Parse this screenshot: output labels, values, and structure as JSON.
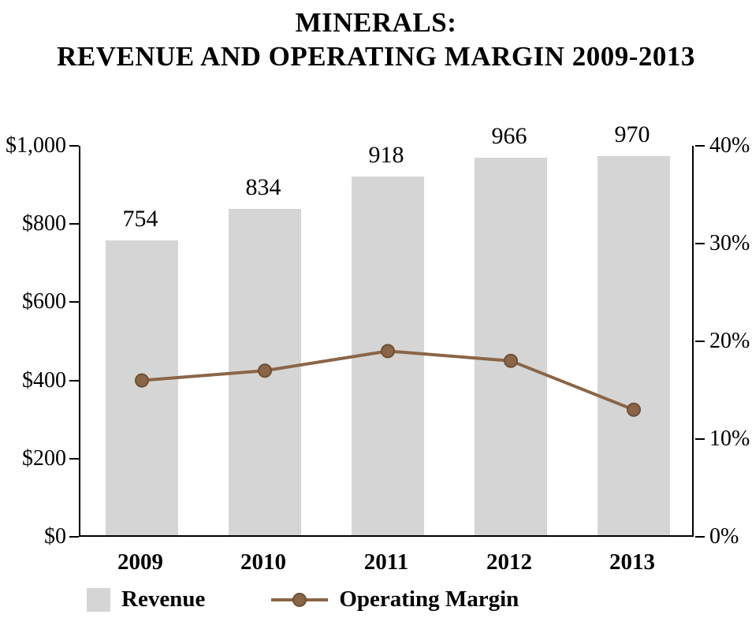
{
  "title": {
    "line1": "MINERALS:",
    "line2": "REVENUE AND OPERATING MARGIN 2009-2013"
  },
  "legend": {
    "revenue": "Revenue",
    "margin": "Operating Margin"
  },
  "colors": {
    "bar": "#d5d5d5",
    "line": "#8a6547",
    "marker_stroke": "#6e4f35",
    "pct_label": "#9a6f45",
    "axis": "#000000",
    "text": "#000000"
  },
  "chart_data": {
    "type": "bar+line",
    "title": "MINERALS: REVENUE AND OPERATING MARGIN 2009-2013",
    "categories": [
      "2009",
      "2010",
      "2011",
      "2012",
      "2013"
    ],
    "series": [
      {
        "name": "Revenue",
        "type": "bar",
        "axis": "left",
        "values": [
          754,
          834,
          918,
          966,
          970
        ],
        "labels": [
          "754",
          "834",
          "918",
          "966",
          "970"
        ]
      },
      {
        "name": "Operating Margin",
        "type": "line",
        "axis": "right",
        "values": [
          16,
          17,
          19,
          18,
          13
        ],
        "labels": [
          "16%",
          "17%",
          "19%",
          "18%",
          "13%"
        ]
      }
    ],
    "left_axis": {
      "min": 0,
      "max": 1000,
      "ticks": [
        {
          "value": 0,
          "label": "$0"
        },
        {
          "value": 200,
          "label": "$200"
        },
        {
          "value": 400,
          "label": "$400"
        },
        {
          "value": 600,
          "label": "$600"
        },
        {
          "value": 800,
          "label": "$800"
        },
        {
          "value": 1000,
          "label": "$1,000"
        }
      ]
    },
    "right_axis": {
      "min": 0,
      "max": 40,
      "ticks": [
        {
          "value": 0,
          "label": "0%"
        },
        {
          "value": 10,
          "label": "10%"
        },
        {
          "value": 20,
          "label": "20%"
        },
        {
          "value": 30,
          "label": "30%"
        },
        {
          "value": 40,
          "label": "40%"
        }
      ]
    },
    "legend_position": "bottom",
    "grid": false
  }
}
